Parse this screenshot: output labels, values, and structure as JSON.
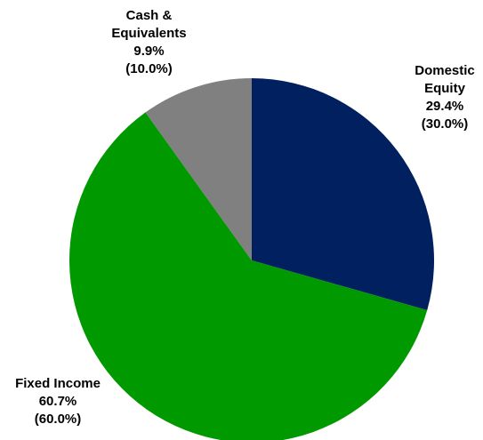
{
  "chart_data": {
    "type": "pie",
    "categories": [
      "Domestic Equity",
      "Fixed Income",
      "Cash & Equivalents"
    ],
    "values": [
      29.4,
      60.7,
      9.9
    ],
    "value_labels": [
      "29.4%",
      "60.7%",
      "9.9%"
    ],
    "target_values": [
      30.0,
      60.0,
      10.0
    ],
    "target_labels": [
      "(30.0%)",
      "(60.0%)",
      "(10.0%)"
    ],
    "colors": [
      "#002060",
      "#009900",
      "#808080"
    ]
  }
}
